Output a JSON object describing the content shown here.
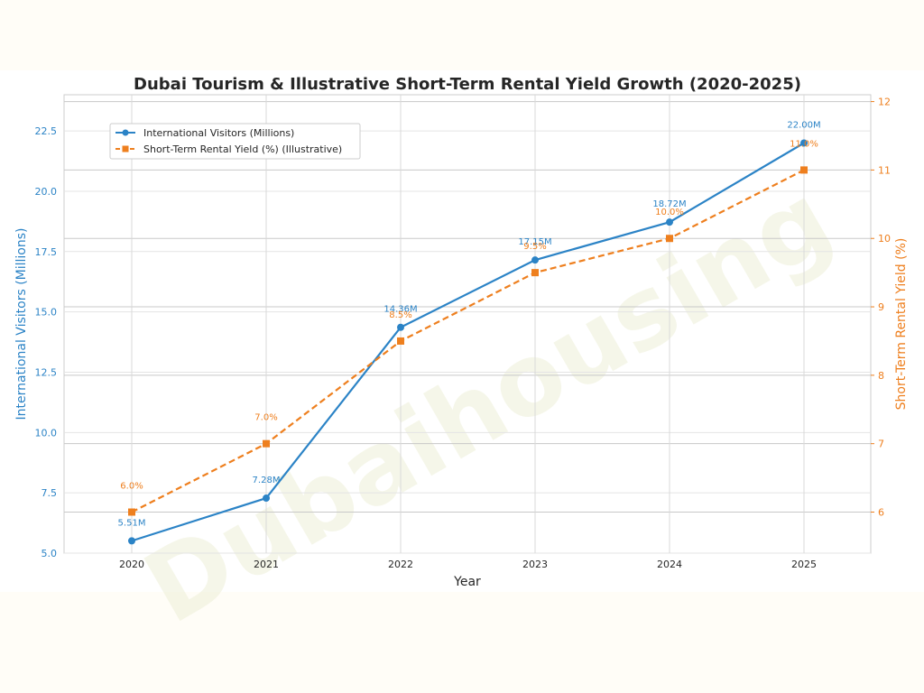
{
  "chart_data": {
    "type": "line",
    "title": "Dubai Tourism & Illustrative Short-Term Rental Yield Growth (2020-2025)",
    "xlabel": "Year",
    "x": [
      "2020",
      "2021",
      "2022",
      "2023",
      "2024",
      "2025"
    ],
    "y_left": {
      "label": "International Visitors (Millions)",
      "range": [
        5.0,
        24.0
      ],
      "ticks": [
        5.0,
        7.5,
        10.0,
        12.5,
        15.0,
        17.5,
        20.0,
        22.5
      ],
      "tick_labels": [
        "5.0",
        "7.5",
        "10.0",
        "12.5",
        "15.0",
        "17.5",
        "20.0",
        "22.5"
      ],
      "color": "#2b83c6"
    },
    "y_right": {
      "label": "Short-Term Rental Yield (%)",
      "range": [
        5.4,
        12.1
      ],
      "ticks": [
        6,
        7,
        8,
        9,
        10,
        11,
        12
      ],
      "tick_labels": [
        "6",
        "7",
        "8",
        "9",
        "10",
        "11",
        "12"
      ],
      "color": "#ee7f1e"
    },
    "series": [
      {
        "name": "International Visitors (Millions)",
        "axis": "left",
        "style": "solid",
        "marker": "circle",
        "color": "#2b83c6",
        "values": [
          5.51,
          7.28,
          14.36,
          17.15,
          18.72,
          22.0
        ],
        "labels": [
          "5.51M",
          "7.28M",
          "14.36M",
          "17.15M",
          "18.72M",
          "22.00M"
        ]
      },
      {
        "name": "Short-Term Rental Yield (%) (Illustrative)",
        "axis": "right",
        "style": "dashed",
        "marker": "square",
        "color": "#ee7f1e",
        "values": [
          6.0,
          7.0,
          8.5,
          9.5,
          10.0,
          11.0
        ],
        "labels": [
          "6.0%",
          "7.0%",
          "8.5%",
          "9.5%",
          "10.0%",
          "11.0%"
        ]
      }
    ],
    "grid": true,
    "legend_position": "top-left",
    "watermark": "Dubaihousing"
  }
}
